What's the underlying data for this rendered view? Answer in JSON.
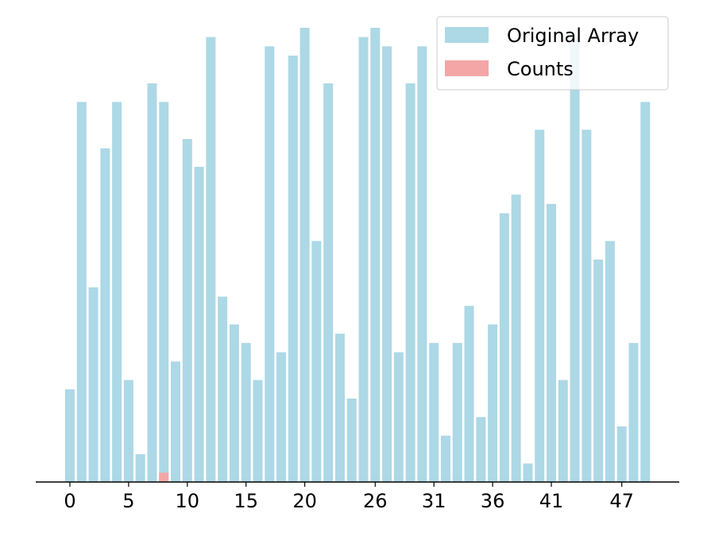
{
  "chart_data": {
    "type": "bar",
    "title": "",
    "xlabel": "",
    "ylabel": "",
    "ylim": [
      0,
      50
    ],
    "x": [
      0,
      1,
      2,
      3,
      4,
      5,
      6,
      7,
      8,
      9,
      10,
      11,
      12,
      13,
      14,
      15,
      16,
      17,
      18,
      19,
      20,
      21,
      22,
      23,
      24,
      25,
      26,
      27,
      28,
      29,
      30,
      31,
      32,
      33,
      34,
      35,
      36,
      37,
      38,
      39,
      40,
      41,
      42,
      43,
      44,
      45,
      46,
      47,
      48,
      49
    ],
    "xticks": [
      0,
      5,
      10,
      15,
      20,
      26,
      31,
      36,
      41,
      47
    ],
    "xtick_labels": [
      "0",
      "5",
      "10",
      "15",
      "20",
      "26",
      "31",
      "36",
      "41",
      "47"
    ],
    "series": [
      {
        "name": "Original Array",
        "color": "#add8e6",
        "values": [
          10,
          41,
          21,
          36,
          41,
          11,
          3,
          43,
          41,
          13,
          37,
          34,
          48,
          20,
          17,
          15,
          11,
          47,
          14,
          46,
          49,
          26,
          43,
          16,
          9,
          48,
          49,
          47,
          14,
          43,
          47,
          15,
          5,
          15,
          19,
          7,
          17,
          29,
          31,
          2,
          38,
          30,
          11,
          48,
          38,
          24,
          26,
          6,
          15,
          41
        ]
      },
      {
        "name": "Counts",
        "color": "#f4a6a6",
        "values": [
          0,
          0,
          0,
          0,
          0,
          0,
          0,
          0,
          1,
          0,
          0,
          0,
          0,
          0,
          0,
          0,
          0,
          0,
          0,
          0,
          0,
          0,
          0,
          0,
          0,
          0,
          0,
          0,
          0,
          0,
          0,
          0,
          0,
          0,
          0,
          0,
          0,
          0,
          0,
          0,
          0,
          0,
          0,
          0,
          0,
          0,
          0,
          0,
          0,
          0
        ]
      }
    ],
    "legend": {
      "position": "top-right",
      "entries": [
        {
          "label": "Original Array",
          "color": "#add8e6"
        },
        {
          "label": "Counts",
          "color": "#f4a6a6"
        }
      ]
    }
  }
}
